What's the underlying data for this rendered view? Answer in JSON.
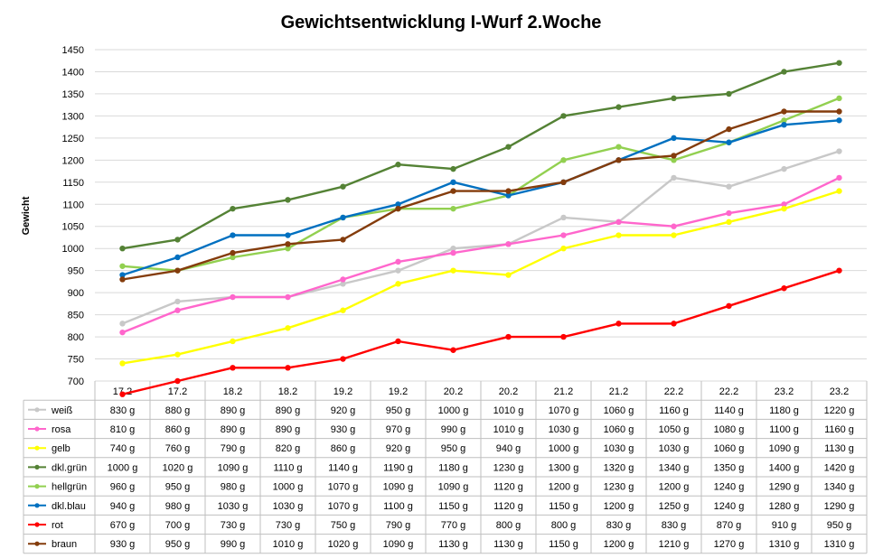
{
  "chart_data": {
    "type": "line",
    "title": "Gewichtsentwicklung I-Wurf 2.Woche",
    "ylabel": "Gewicht",
    "ylim": [
      700,
      1450
    ],
    "yticks": [
      700,
      750,
      800,
      850,
      900,
      950,
      1000,
      1050,
      1100,
      1150,
      1200,
      1250,
      1300,
      1350,
      1400,
      1450
    ],
    "grid": true,
    "legend": "data-table",
    "unit": "g",
    "categories": [
      "17.2",
      "17.2",
      "18.2",
      "18.2",
      "19.2",
      "19.2",
      "20.2",
      "20.2",
      "21.2",
      "21.2",
      "22.2",
      "22.2",
      "23.2",
      "23.2"
    ],
    "series": [
      {
        "name": "weiß",
        "color": "#c8c8c8",
        "values": [
          830,
          880,
          890,
          890,
          920,
          950,
          1000,
          1010,
          1070,
          1060,
          1160,
          1140,
          1180,
          1220
        ]
      },
      {
        "name": "rosa",
        "color": "#ff66cc",
        "values": [
          810,
          860,
          890,
          890,
          930,
          970,
          990,
          1010,
          1030,
          1060,
          1050,
          1080,
          1100,
          1160
        ]
      },
      {
        "name": "gelb",
        "color": "#ffff00",
        "values": [
          740,
          760,
          790,
          820,
          860,
          920,
          950,
          940,
          1000,
          1030,
          1030,
          1060,
          1090,
          1130
        ]
      },
      {
        "name": "dkl.grün",
        "color": "#548235",
        "values": [
          1000,
          1020,
          1090,
          1110,
          1140,
          1190,
          1180,
          1230,
          1300,
          1320,
          1340,
          1350,
          1400,
          1420
        ]
      },
      {
        "name": "hellgrün",
        "color": "#92d050",
        "values": [
          960,
          950,
          980,
          1000,
          1070,
          1090,
          1090,
          1120,
          1200,
          1230,
          1200,
          1240,
          1290,
          1340
        ]
      },
      {
        "name": "dkl.blau",
        "color": "#0070c0",
        "values": [
          940,
          980,
          1030,
          1030,
          1070,
          1100,
          1150,
          1120,
          1150,
          1200,
          1250,
          1240,
          1280,
          1290
        ]
      },
      {
        "name": "rot",
        "color": "#ff0000",
        "values": [
          670,
          700,
          730,
          730,
          750,
          790,
          770,
          800,
          800,
          830,
          830,
          870,
          910,
          950
        ]
      },
      {
        "name": "braun",
        "color": "#843c0c",
        "values": [
          930,
          950,
          990,
          1010,
          1020,
          1090,
          1130,
          1130,
          1150,
          1200,
          1210,
          1270,
          1310,
          1310
        ]
      }
    ]
  }
}
